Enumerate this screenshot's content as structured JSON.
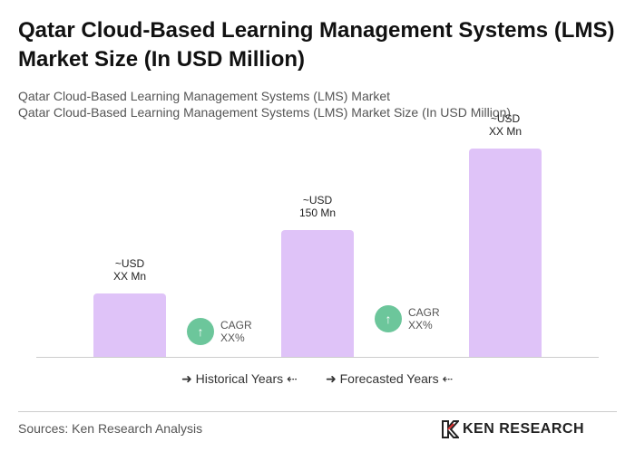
{
  "chart_data": {
    "type": "bar",
    "title": "Qatar Cloud-Based Learning Management Systems (LMS) Market Size (In USD Million)",
    "subtitle": [
      "Qatar Cloud-Based Learning Management Systems (LMS) Market",
      "Qatar Cloud-Based Learning Management Systems (LMS) Market Size (In USD Million)"
    ],
    "categories": [
      null,
      null,
      null
    ],
    "values": [
      75,
      150,
      246
    ],
    "value_labels": [
      "~USD\nXX Mn",
      "~USD\n150 Mn",
      "~USD\nXX Mn"
    ],
    "color": "#dfc3f8",
    "annotations": [
      "CAGR\nXX%",
      "CAGR\nXX%"
    ],
    "annotation_color": "#6cc69b",
    "legend": [
      "Historical Years",
      "Forecasted Years"
    ]
  },
  "footer": {
    "source": "Sources: Ken Research Analysis",
    "brand": "KEN RESEARCH"
  }
}
